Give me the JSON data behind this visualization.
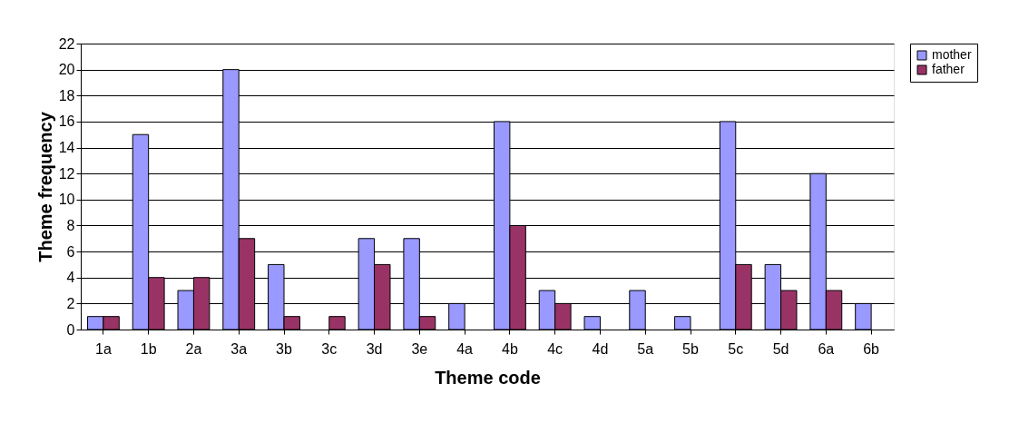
{
  "chart_data": {
    "type": "bar",
    "xlabel": "Theme code",
    "ylabel": "Theme frequency",
    "categories": [
      "1a",
      "1b",
      "2a",
      "3a",
      "3b",
      "3c",
      "3d",
      "3e",
      "4a",
      "4b",
      "4c",
      "4d",
      "5a",
      "5b",
      "5c",
      "5d",
      "6a",
      "6b"
    ],
    "series": [
      {
        "name": "mother",
        "color": "#9999ff",
        "values": [
          1,
          15,
          3,
          20,
          5,
          0,
          7,
          7,
          2,
          16,
          3,
          1,
          3,
          1,
          16,
          5,
          12,
          2
        ]
      },
      {
        "name": "father",
        "color": "#993366",
        "values": [
          1,
          4,
          4,
          7,
          1,
          1,
          5,
          1,
          0,
          8,
          2,
          0,
          0,
          0,
          5,
          3,
          3,
          0
        ]
      }
    ],
    "ylim": [
      0,
      22
    ],
    "yticks": [
      0,
      2,
      4,
      6,
      8,
      10,
      12,
      14,
      16,
      18,
      20,
      22
    ],
    "grid": "y",
    "legend": "right"
  }
}
